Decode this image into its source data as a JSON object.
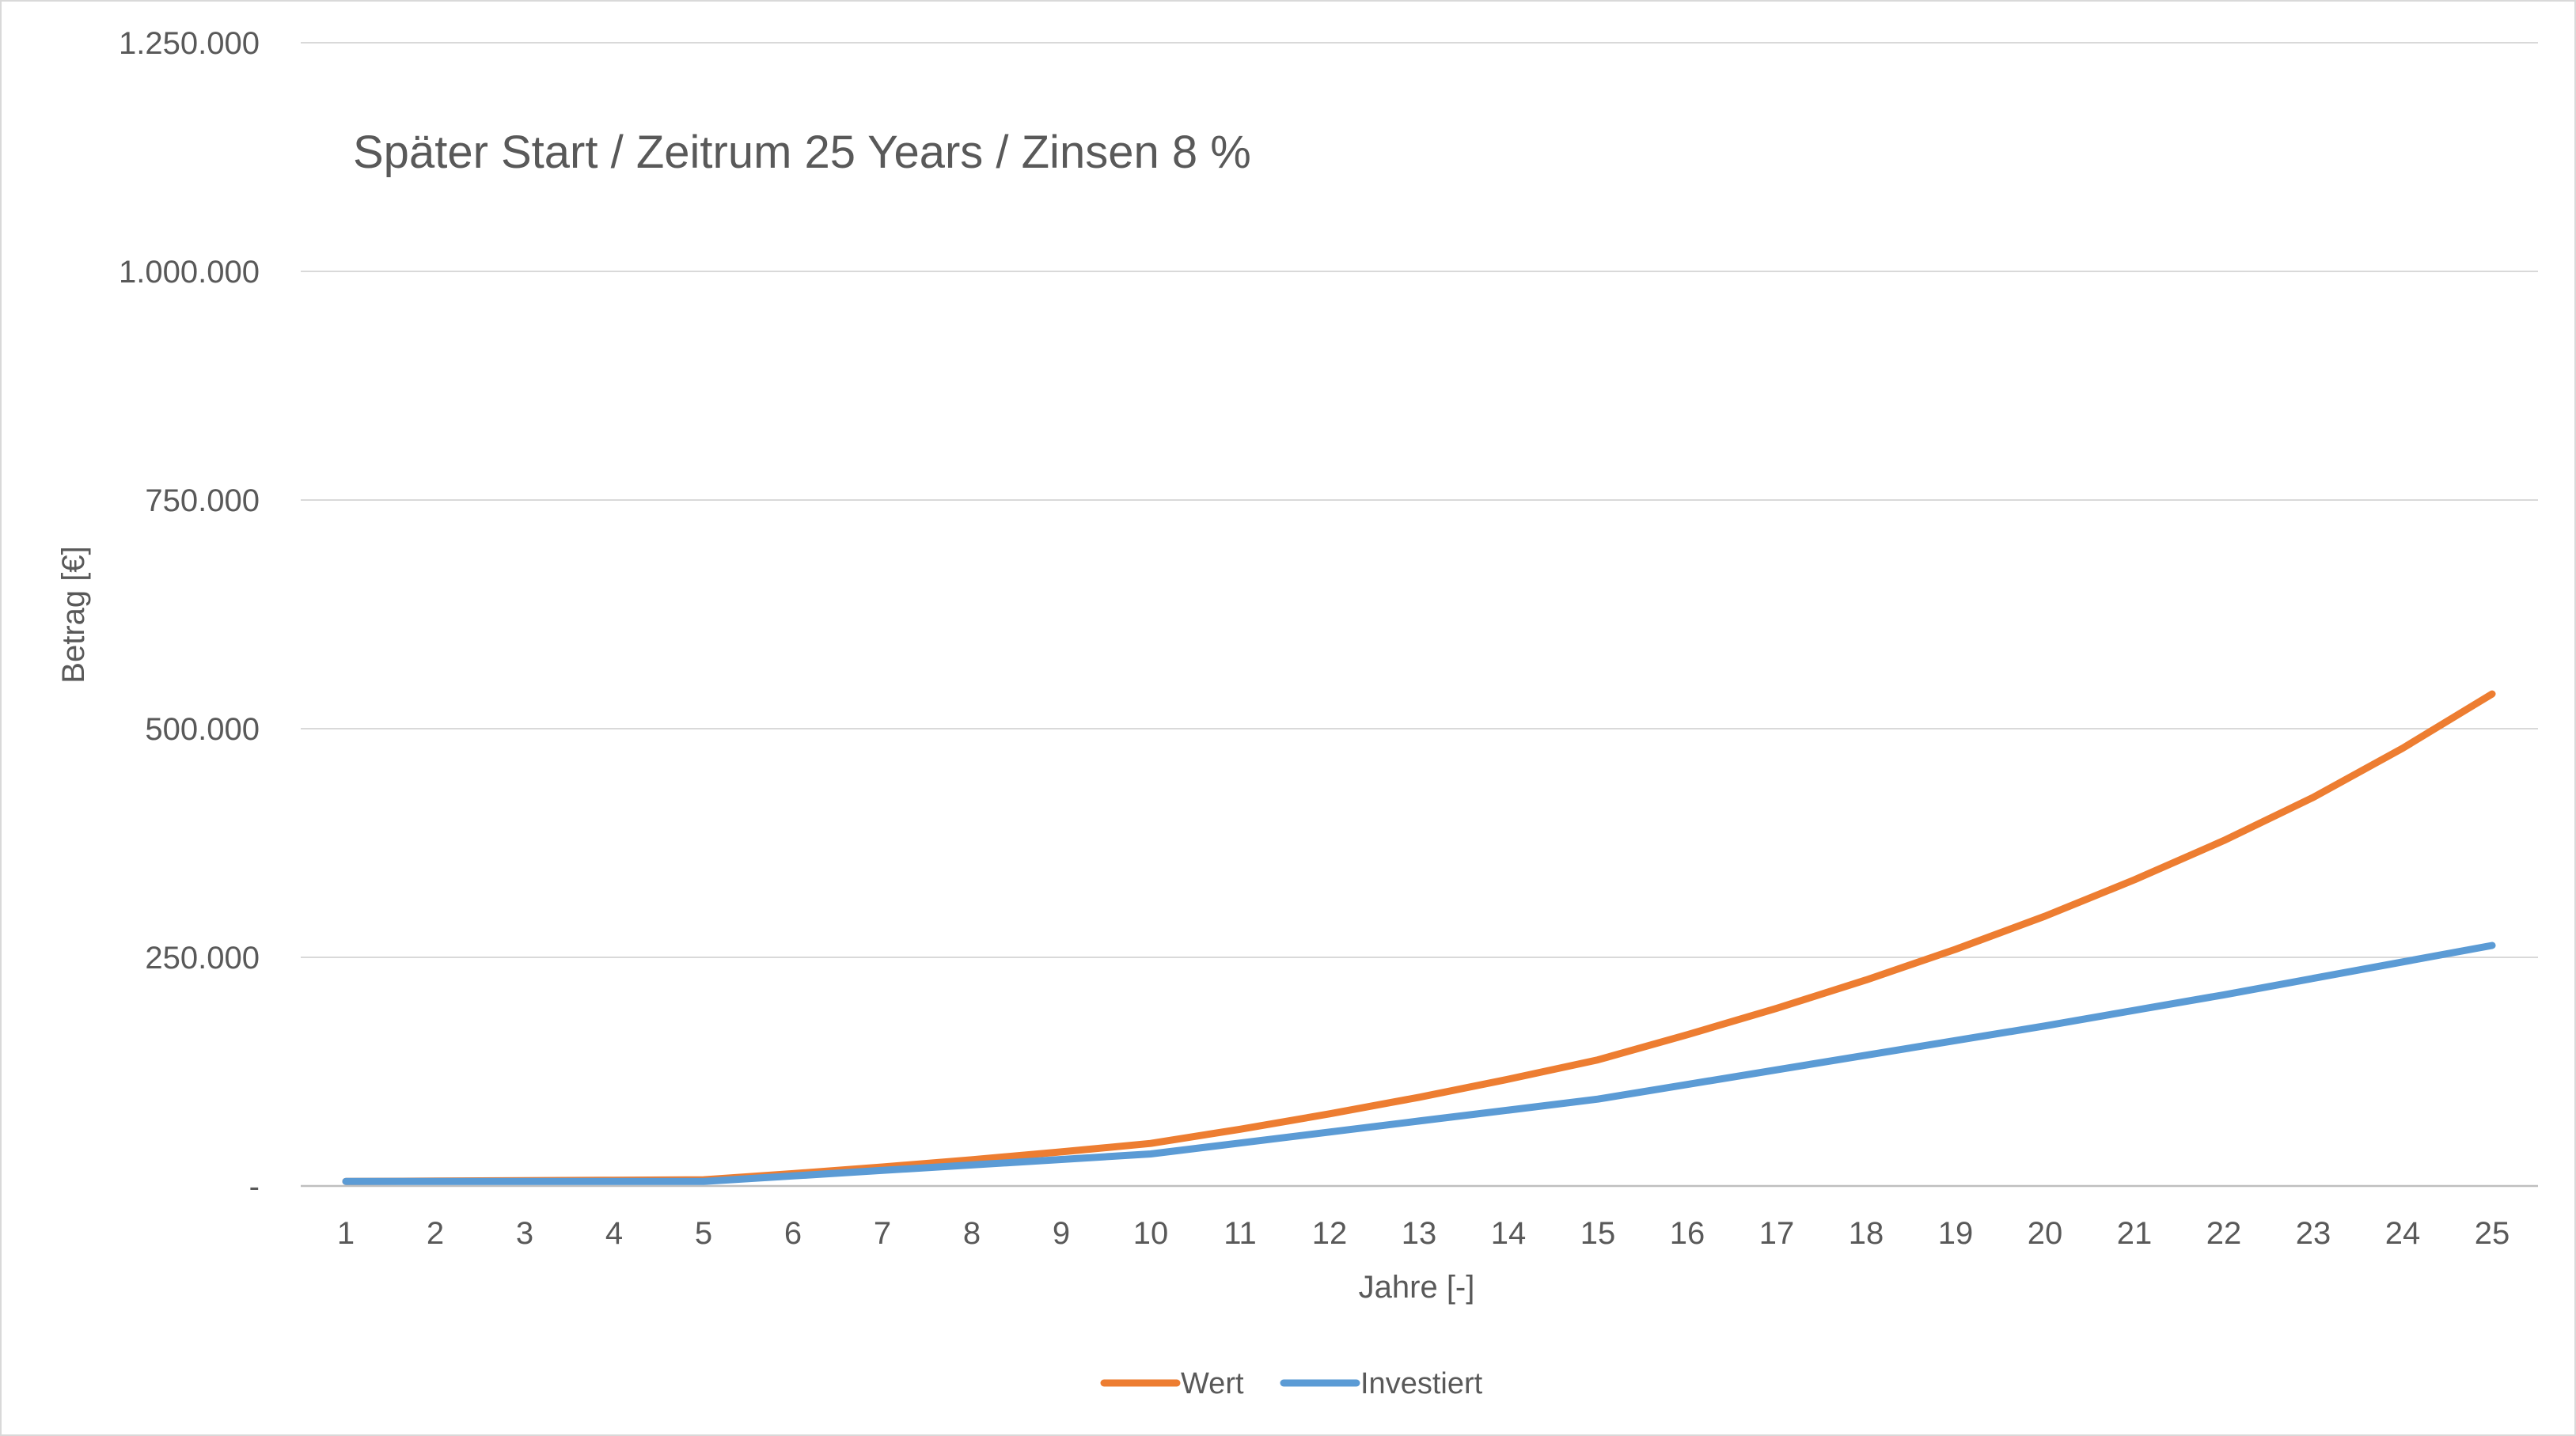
{
  "chart_data": {
    "type": "line",
    "title": "Später Start / Zeitrum 25 Years / Zinsen 8 %",
    "xlabel": "Jahre [-]",
    "ylabel": "Betrag [€]",
    "categories": [
      "1",
      "2",
      "3",
      "4",
      "5",
      "6",
      "7",
      "8",
      "9",
      "10",
      "11",
      "12",
      "13",
      "14",
      "15",
      "16",
      "17",
      "18",
      "19",
      "20",
      "21",
      "22",
      "23",
      "24",
      "25"
    ],
    "ylim": [
      0,
      1250000
    ],
    "yticks": [
      {
        "value": 0,
        "label": "-"
      },
      {
        "value": 250000,
        "label": "250.000"
      },
      {
        "value": 500000,
        "label": "500.000"
      },
      {
        "value": 750000,
        "label": "750.000"
      },
      {
        "value": 1000000,
        "label": "1.000.000"
      },
      {
        "value": 1250000,
        "label": "1.250.000"
      }
    ],
    "grid": true,
    "legend_position": "bottom",
    "series": [
      {
        "name": "Wert",
        "color": "#ed7d31",
        "values": [
          5000,
          5400,
          5832,
          6299,
          6802,
          13500,
          20800,
          28700,
          37300,
          46500,
          62000,
          78900,
          97000,
          116800,
          137900,
          165400,
          194300,
          225300,
          258700,
          295000,
          334800,
          377700,
          424900,
          478600,
          538000
        ]
      },
      {
        "name": "Investiert",
        "color": "#5b9bd5",
        "values": [
          5000,
          5000,
          5000,
          5000,
          5000,
          11000,
          17000,
          23000,
          29000,
          35000,
          47000,
          59000,
          71000,
          83000,
          95000,
          111000,
          127000,
          143000,
          159000,
          175000,
          192000,
          209000,
          227000,
          245000,
          263000
        ]
      }
    ]
  }
}
